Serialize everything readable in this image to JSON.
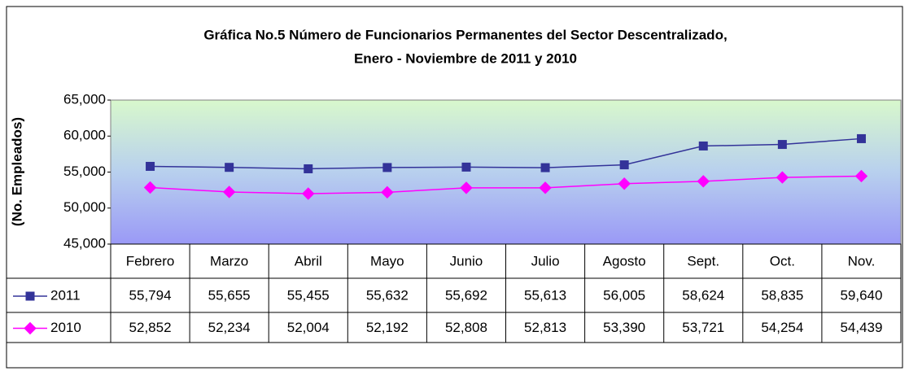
{
  "chart_data": {
    "type": "line",
    "title": [
      "Gráfica No.5 Número de Funcionarios Permanentes del Sector Descentralizado,",
      "Enero - Noviembre de 2011 y 2010"
    ],
    "y_label": "(No. Empleados)",
    "categories": [
      "Febrero",
      "Marzo",
      "Abril",
      "Mayo",
      "Junio",
      "Julio",
      "Agosto",
      "Sept.",
      "Oct.",
      "Nov."
    ],
    "series": [
      {
        "name": "2011",
        "color": "#333399",
        "marker": "square",
        "values": [
          55794,
          55655,
          55455,
          55632,
          55692,
          55613,
          56005,
          58624,
          58835,
          59640
        ],
        "value_labels": [
          "55,794",
          "55,655",
          "55,455",
          "55,632",
          "55,692",
          "55,613",
          "56,005",
          "58,624",
          "58,835",
          "59,640"
        ]
      },
      {
        "name": "2010",
        "color": "#ff00ff",
        "marker": "diamond",
        "values": [
          52852,
          52234,
          52004,
          52192,
          52808,
          52813,
          53390,
          53721,
          54254,
          54439
        ],
        "value_labels": [
          "52,852",
          "52,234",
          "52,004",
          "52,192",
          "52,808",
          "52,813",
          "53,390",
          "53,721",
          "54,254",
          "54,439"
        ]
      }
    ],
    "ylim": [
      45000,
      65000
    ],
    "yticks": [
      {
        "value": 45000,
        "label": "45,000"
      },
      {
        "value": 50000,
        "label": "50,000"
      },
      {
        "value": 55000,
        "label": "55,000"
      },
      {
        "value": 60000,
        "label": "60,000"
      },
      {
        "value": 65000,
        "label": "65,000"
      }
    ],
    "grid": false
  }
}
